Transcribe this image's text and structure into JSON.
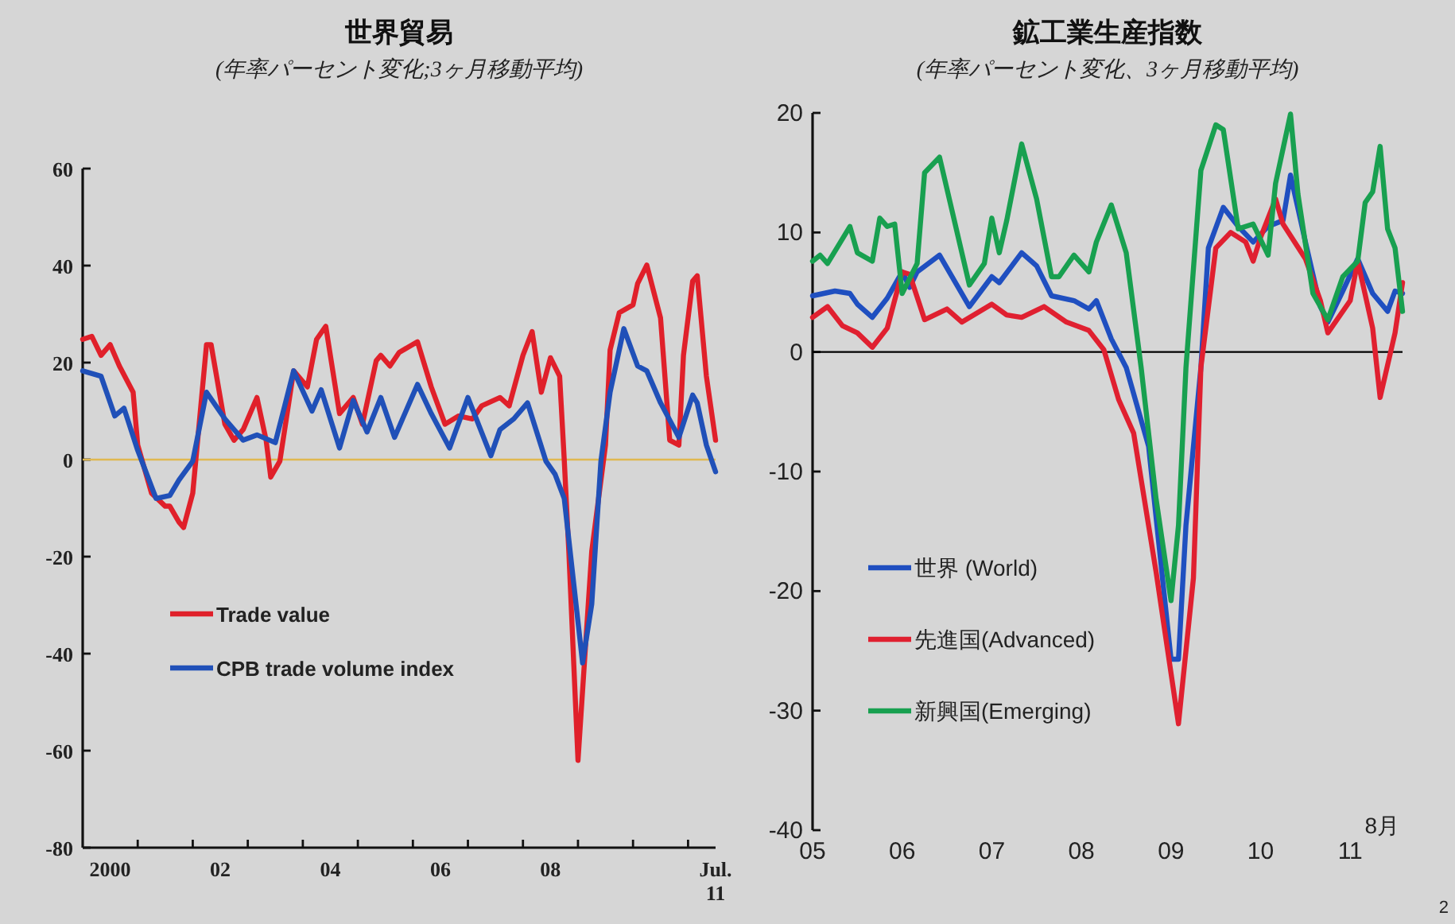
{
  "chart_data": [
    {
      "type": "line",
      "title": "世界貿易",
      "subtitle": "(年率パーセント変化;3ヶ月移動平均)",
      "xlim": [
        "2000-01",
        "2011-07"
      ],
      "ylim": [
        -80,
        60
      ],
      "yticks": [
        -80,
        -60,
        -40,
        -20,
        0,
        20,
        40,
        60
      ],
      "xticks": [
        {
          "value": "2000-07",
          "label": "2000"
        },
        {
          "value": "2002-07",
          "label": "02"
        },
        {
          "value": "2004-07",
          "label": "04"
        },
        {
          "value": "2006-07",
          "label": "06"
        },
        {
          "value": "2008-07",
          "label": "08"
        },
        {
          "value": "2011-07",
          "label": "Jul.\n11"
        },
        {
          "value": "2001-01",
          "label": null
        },
        {
          "value": "2002-01",
          "label": null
        },
        {
          "value": "2003-01",
          "label": null
        },
        {
          "value": "2004-01",
          "label": null
        },
        {
          "value": "2005-01",
          "label": null
        },
        {
          "value": "2006-01",
          "label": null
        },
        {
          "value": "2007-01",
          "label": null
        },
        {
          "value": "2008-01",
          "label": null
        },
        {
          "value": "2009-01",
          "label": null
        },
        {
          "value": "2010-01",
          "label": null
        },
        {
          "value": "2011-01",
          "label": null
        }
      ],
      "grid": false,
      "legend": "left",
      "ref_lines": [
        {
          "axis": "y",
          "value": 0,
          "color": "#e0b850"
        }
      ],
      "series": [
        {
          "name": "Trade value",
          "color": "#e0202a",
          "x": [
            "2000-01",
            "2000-03",
            "2000-05",
            "2000-07",
            "2000-09",
            "2000-12",
            "2001-01",
            "2001-04",
            "2001-07",
            "2001-08",
            "2001-10",
            "2001-11",
            "2002-01",
            "2002-04",
            "2002-05",
            "2002-08",
            "2002-10",
            "2002-12",
            "2003-03",
            "2003-05",
            "2003-06",
            "2003-08",
            "2003-11",
            "2004-02",
            "2004-04",
            "2004-06",
            "2004-09",
            "2004-12",
            "2005-02",
            "2005-05",
            "2005-06",
            "2005-08",
            "2005-10",
            "2005-12",
            "2006-02",
            "2006-05",
            "2006-08",
            "2006-11",
            "2007-02",
            "2007-04",
            "2007-08",
            "2007-10",
            "2008-01",
            "2008-03",
            "2008-05",
            "2008-07",
            "2008-09",
            "2008-10",
            "2008-11",
            "2009-01",
            "2009-04",
            "2009-07",
            "2009-08",
            "2009-10",
            "2010-01",
            "2010-02",
            "2010-04",
            "2010-07",
            "2010-09",
            "2010-11",
            "2010-12",
            "2011-02",
            "2011-03",
            "2011-05",
            "2011-07"
          ],
          "values": [
            24.8,
            25.4,
            21.5,
            23.7,
            19.3,
            13.9,
            3,
            -6.9,
            -9.6,
            -9.6,
            -12.9,
            -14,
            -6.9,
            23.7,
            23.7,
            7.3,
            4,
            6.2,
            12.8,
            4,
            -3.6,
            -0.3,
            18.3,
            15,
            24.8,
            27.5,
            9.5,
            12.8,
            7.3,
            20.4,
            21.5,
            19.3,
            22.1,
            23.2,
            24.3,
            15,
            7.3,
            9,
            8.4,
            11.1,
            12.8,
            11.1,
            21.5,
            26.4,
            13.9,
            21,
            17.2,
            0,
            -18.9,
            -62,
            -18.9,
            3,
            22.6,
            30.3,
            31.9,
            36.3,
            40.1,
            29.2,
            4,
            3,
            21.5,
            36.8,
            37.9,
            17.2,
            4
          ]
        },
        {
          "name": "CPB trade volume index",
          "color": "#2050b8",
          "x": [
            "2000-01",
            "2000-05",
            "2000-08",
            "2000-10",
            "2001-01",
            "2001-05",
            "2001-08",
            "2001-10",
            "2002-01",
            "2002-04",
            "2002-08",
            "2002-12",
            "2003-03",
            "2003-07",
            "2003-11",
            "2004-03",
            "2004-05",
            "2004-09",
            "2004-12",
            "2005-03",
            "2005-06",
            "2005-09",
            "2006-02",
            "2006-05",
            "2006-09",
            "2007-01",
            "2007-06",
            "2007-08",
            "2007-11",
            "2008-02",
            "2008-06",
            "2008-08",
            "2008-10",
            "2009-02",
            "2009-04",
            "2009-06",
            "2009-08",
            "2009-11",
            "2010-02",
            "2010-04",
            "2010-07",
            "2010-11",
            "2011-02",
            "2011-03",
            "2011-05",
            "2011-07"
          ],
          "values": [
            18.3,
            17.2,
            9,
            10.6,
            1.9,
            -8,
            -7.4,
            -4.2,
            -0.3,
            13.9,
            8.4,
            4,
            5.1,
            3.5,
            18.3,
            10,
            14.4,
            2.4,
            12.2,
            5.7,
            12.8,
            4.6,
            15.5,
            9.5,
            2.4,
            12.8,
            0.8,
            6.2,
            8.4,
            11.7,
            -0.3,
            -3,
            -8,
            -41.9,
            -29.8,
            -0.3,
            13.9,
            27,
            19.3,
            18.3,
            11.7,
            4.6,
            13.3,
            11.7,
            3,
            -2.5
          ]
        }
      ]
    },
    {
      "type": "line",
      "title": "鉱工業生産指数",
      "subtitle": "(年率パーセント変化、3ヶ月移動平均)",
      "xlim": [
        "2005-01",
        "2011-08"
      ],
      "ylim": [
        -40,
        20
      ],
      "yticks": [
        -40,
        -30,
        -20,
        -10,
        0,
        10,
        20
      ],
      "xticks": [
        {
          "value": "2005-01",
          "label": "05"
        },
        {
          "value": "2006-01",
          "label": "06"
        },
        {
          "value": "2007-01",
          "label": "07"
        },
        {
          "value": "2008-01",
          "label": "08"
        },
        {
          "value": "2009-01",
          "label": "09"
        },
        {
          "value": "2010-01",
          "label": "10"
        },
        {
          "value": "2011-01",
          "label": "11"
        }
      ],
      "grid": false,
      "legend": "bottom left",
      "ref_lines": [
        {
          "axis": "y",
          "value": 0,
          "color": "#000000"
        }
      ],
      "annotations": [
        "8月",
        "2"
      ],
      "series": [
        {
          "name": "世界 (World)",
          "color": "#1f4fc0",
          "x": [
            "2005-01",
            "2005-04",
            "2005-06",
            "2005-07",
            "2005-09",
            "2005-11",
            "2006-01",
            "2006-02",
            "2006-03",
            "2006-06",
            "2006-10",
            "2007-01",
            "2007-02",
            "2007-05",
            "2007-07",
            "2007-09",
            "2007-12",
            "2008-02",
            "2008-03",
            "2008-05",
            "2008-07",
            "2008-10",
            "2009-01",
            "2009-02",
            "2009-03",
            "2009-05",
            "2009-06",
            "2009-08",
            "2009-10",
            "2009-12",
            "2010-02",
            "2010-04",
            "2010-05",
            "2010-07",
            "2010-09",
            "2010-10",
            "2010-12",
            "2011-02",
            "2011-04",
            "2011-06",
            "2011-07",
            "2011-08"
          ],
          "values": [
            4.7,
            5.1,
            4.9,
            4,
            2.9,
            4.5,
            6.7,
            5.4,
            6.7,
            8.1,
            3.8,
            6.3,
            5.8,
            8.3,
            7.2,
            4.7,
            4.3,
            3.6,
            4.3,
            1.1,
            -1.3,
            -7.9,
            -25.7,
            -25.7,
            -14.5,
            -1.3,
            8.7,
            12.1,
            10.5,
            9.2,
            10.5,
            11,
            14.8,
            9.2,
            3.8,
            2.5,
            5.1,
            7.8,
            4.9,
            3.4,
            5.1,
            4.9
          ]
        },
        {
          "name": "先進国(Advanced)",
          "color": "#e02030",
          "x": [
            "2005-01",
            "2005-03",
            "2005-05",
            "2005-07",
            "2005-09",
            "2005-11",
            "2006-01",
            "2006-02",
            "2006-04",
            "2006-07",
            "2006-09",
            "2007-01",
            "2007-03",
            "2007-05",
            "2007-08",
            "2007-11",
            "2008-02",
            "2008-04",
            "2008-06",
            "2008-08",
            "2008-11",
            "2009-02",
            "2009-04",
            "2009-05",
            "2009-07",
            "2009-09",
            "2009-11",
            "2009-12",
            "2010-01",
            "2010-03",
            "2010-04",
            "2010-07",
            "2010-09",
            "2010-10",
            "2011-01",
            "2011-02",
            "2011-04",
            "2011-05",
            "2011-07",
            "2011-08"
          ],
          "values": [
            2.9,
            3.8,
            2.2,
            1.6,
            0.4,
            2,
            6.7,
            6.5,
            2.7,
            3.6,
            2.5,
            4,
            3.1,
            2.9,
            3.8,
            2.5,
            1.8,
            0.2,
            -4,
            -6.8,
            -18.4,
            -31.1,
            -18.9,
            -1.3,
            8.7,
            10,
            9.2,
            7.6,
            9.6,
            12.8,
            10.7,
            7.8,
            4.3,
            1.6,
            4.3,
            7.6,
            2,
            -3.8,
            1.6,
            5.8
          ]
        },
        {
          "name": "新興国(Emerging)",
          "color": "#18a050",
          "x": [
            "2005-01",
            "2005-02",
            "2005-03",
            "2005-06",
            "2005-07",
            "2005-09",
            "2005-10",
            "2005-11",
            "2005-12",
            "2006-01",
            "2006-03",
            "2006-04",
            "2006-06",
            "2006-10",
            "2006-12",
            "2007-01",
            "2007-02",
            "2007-03",
            "2007-05",
            "2007-07",
            "2007-09",
            "2007-10",
            "2007-12",
            "2008-02",
            "2008-03",
            "2008-05",
            "2008-07",
            "2008-09",
            "2008-11",
            "2009-01",
            "2009-02",
            "2009-03",
            "2009-05",
            "2009-07",
            "2009-08",
            "2009-10",
            "2009-12",
            "2010-02",
            "2010-03",
            "2010-05",
            "2010-06",
            "2010-08",
            "2010-10",
            "2010-12",
            "2011-02",
            "2011-03",
            "2011-04",
            "2011-05",
            "2011-06",
            "2011-07",
            "2011-08"
          ],
          "values": [
            7.6,
            8.1,
            7.4,
            10.5,
            8.3,
            7.6,
            11.2,
            10.5,
            10.7,
            4.9,
            7.4,
            15,
            16.3,
            5.6,
            7.4,
            11.2,
            8.3,
            11,
            17.4,
            12.8,
            6.3,
            6.3,
            8.1,
            6.7,
            9.2,
            12.3,
            8.3,
            -1.3,
            -12.3,
            -20.8,
            -14.5,
            -1.3,
            15.2,
            19,
            18.6,
            10.3,
            10.7,
            8.1,
            14.1,
            19.9,
            13.2,
            4.9,
            2.7,
            6.3,
            7.6,
            12.5,
            13.4,
            17.2,
            10.3,
            8.7,
            3.4
          ]
        }
      ]
    }
  ]
}
